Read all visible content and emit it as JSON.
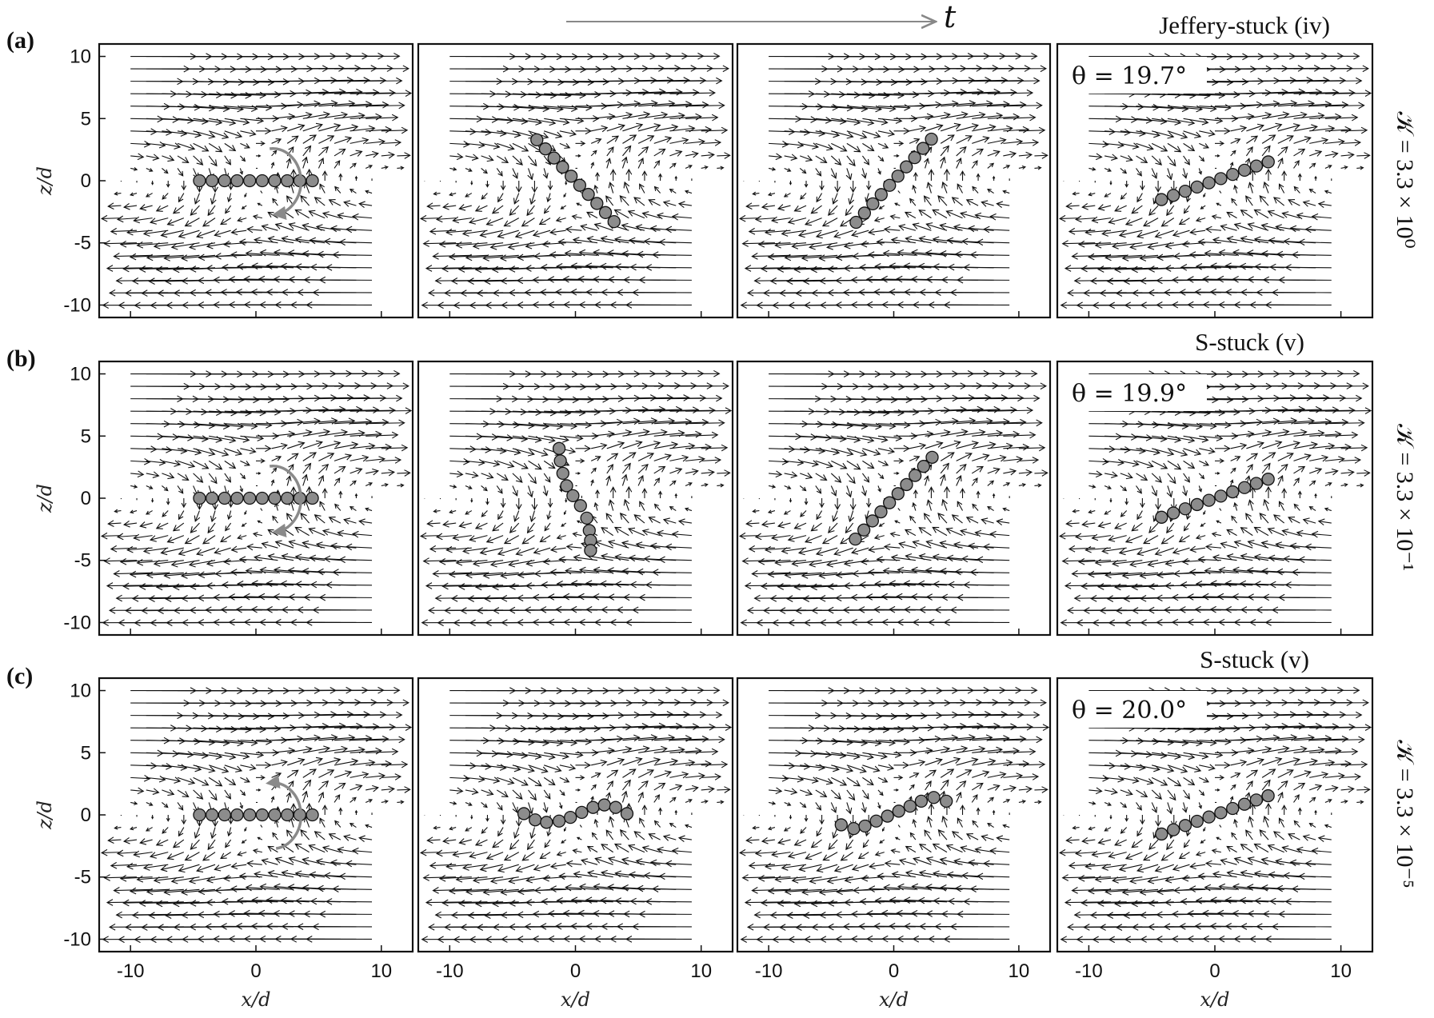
{
  "header": {
    "time_arrow_label": "t"
  },
  "rows": [
    {
      "label": "(a)",
      "state": "Jeffery-stuck (iv)",
      "kappa": "𝒦 = 3.3 × 10⁰",
      "theta": "θ = 19.7°"
    },
    {
      "label": "(b)",
      "state": "S-stuck (v)",
      "kappa": "𝒦 = 3.3 × 10⁻¹",
      "theta": "θ = 19.9°"
    },
    {
      "label": "(c)",
      "state": "S-stuck (v)",
      "kappa": "𝒦 = 3.3 × 10⁻⁵",
      "theta": "θ = 20.0°"
    }
  ],
  "axes": {
    "xlabel": "x/d",
    "ylabel": "z/d",
    "x_ticks": [
      "-10",
      "0",
      "10"
    ],
    "y_ticks": [
      "10",
      "5",
      "0",
      "-5",
      "-10"
    ]
  },
  "chart_data": {
    "type": "scatter",
    "description_type": "quiver + bead chain",
    "xlim": [
      -12.5,
      12.5
    ],
    "ylim": [
      -11,
      11
    ],
    "x_tick_values": [
      -10,
      0,
      10
    ],
    "y_tick_values": [
      10,
      5,
      0,
      -5,
      -10
    ],
    "bead_color": "#8c8c8c",
    "arrow_color": "#111111",
    "rotation_arrow_color": "#8a8a8a",
    "panels": [
      [
        {
          "shape": "straight",
          "angle_deg": 0,
          "rotation": "cw"
        },
        {
          "shape": "straight",
          "angle_deg": -47
        },
        {
          "shape": "straight",
          "angle_deg": 48
        },
        {
          "shape": "straight",
          "angle_deg": 19.7
        }
      ],
      [
        {
          "shape": "straight",
          "angle_deg": 0,
          "rotation": "cw"
        },
        {
          "shape": "bent",
          "points_x": [
            -1.3,
            -1.2,
            -1.0,
            -0.7,
            -0.2,
            0.4,
            0.9,
            1.1,
            1.2,
            1.2
          ],
          "points_z": [
            4.0,
            3.0,
            2.0,
            1.0,
            0.2,
            -0.6,
            -1.6,
            -2.6,
            -3.4,
            -4.2
          ]
        },
        {
          "shape": "straight",
          "angle_deg": 47
        },
        {
          "shape": "straight",
          "angle_deg": 19.9
        }
      ],
      [
        {
          "shape": "straight",
          "angle_deg": 0,
          "rotation": "ccw"
        },
        {
          "shape": "wavy",
          "points_x": [
            -4.1,
            -3.2,
            -2.3,
            -1.3,
            -0.4,
            0.5,
            1.4,
            2.3,
            3.2,
            4.1
          ],
          "points_z": [
            0.1,
            -0.4,
            -0.6,
            -0.5,
            -0.2,
            0.2,
            0.6,
            0.8,
            0.6,
            0.1
          ]
        },
        {
          "shape": "wavy",
          "points_x": [
            -4.2,
            -3.2,
            -2.3,
            -1.4,
            -0.5,
            0.4,
            1.3,
            2.2,
            3.2,
            4.2
          ],
          "points_z": [
            -0.8,
            -1.1,
            -0.9,
            -0.5,
            -0.1,
            0.3,
            0.7,
            1.1,
            1.4,
            1.1
          ]
        },
        {
          "shape": "straight",
          "angle_deg": 20.0
        }
      ]
    ]
  }
}
